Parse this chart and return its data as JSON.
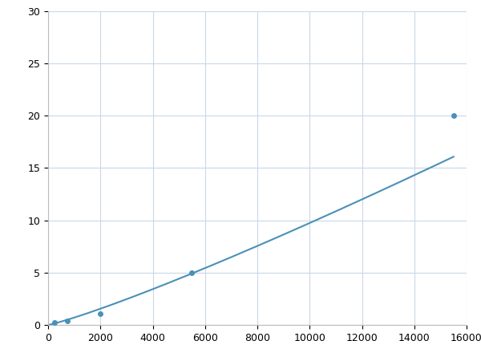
{
  "x_points": [
    250,
    750,
    2000,
    5500,
    15500
  ],
  "y_points": [
    0.2,
    0.4,
    1.1,
    5.0,
    20.0
  ],
  "line_color": "#4a90b8",
  "marker_color": "#4a90b8",
  "marker_size": 5,
  "line_width": 1.5,
  "xlim": [
    0,
    16000
  ],
  "ylim": [
    0,
    30
  ],
  "xticks": [
    0,
    2000,
    4000,
    6000,
    8000,
    10000,
    12000,
    14000,
    16000
  ],
  "yticks": [
    0,
    5,
    10,
    15,
    20,
    25,
    30
  ],
  "grid_color": "#c8d8e8",
  "background_color": "#ffffff",
  "spine_color": "#bbbbbb",
  "tick_fontsize": 9
}
